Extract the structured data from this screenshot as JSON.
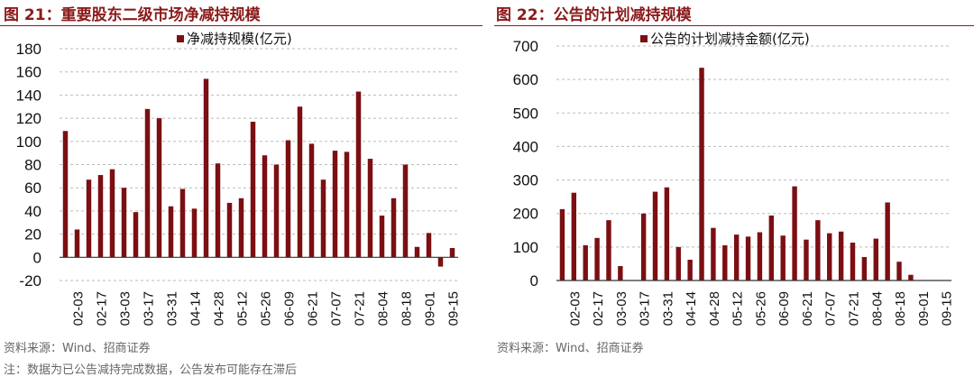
{
  "left": {
    "title": "图 21：重要股东二级市场净减持规模",
    "source": "资料来源：Wind、招商证券",
    "note": "注：数据为已公告减持完成数据，公告发布可能存在滞后"
  },
  "right": {
    "title": "图 22：公告的计划减持规模",
    "source": "资料来源：Wind、招商证券"
  },
  "colors": {
    "bar": "#7b0f12",
    "title": "#8b1a1a"
  },
  "chart_data": [
    {
      "type": "bar",
      "title": "",
      "legend": "净减持规模(亿元)",
      "legend_position": "top-center",
      "ylim": [
        -20,
        180
      ],
      "yticks": [
        -20,
        0,
        20,
        40,
        60,
        80,
        100,
        120,
        140,
        160,
        180
      ],
      "grid": true,
      "categories": [
        "",
        "02-03",
        "",
        "02-17",
        "",
        "03-03",
        "",
        "03-17",
        "",
        "03-31",
        "",
        "04-14",
        "",
        "04-28",
        "",
        "05-12",
        "",
        "05-26",
        "",
        "06-09",
        "",
        "06-21",
        "",
        "07-07",
        "",
        "07-21",
        "",
        "08-04",
        "",
        "08-18",
        "",
        "09-01",
        "",
        "09-15"
      ],
      "values": [
        109,
        24,
        67,
        71,
        76,
        60,
        39,
        128,
        120,
        44,
        59,
        42,
        154,
        81,
        47,
        51,
        117,
        88,
        80,
        101,
        130,
        98,
        67,
        92,
        91,
        143,
        85,
        36,
        51,
        80,
        9,
        21,
        -8,
        8
      ]
    },
    {
      "type": "bar",
      "title": "",
      "legend": "公告的计划减持金额(亿元)",
      "legend_position": "top-center",
      "ylim": [
        0,
        700
      ],
      "yticks": [
        0,
        100,
        200,
        300,
        400,
        500,
        600,
        700
      ],
      "grid": true,
      "categories": [
        "",
        "02-03",
        "",
        "02-17",
        "",
        "03-03",
        "",
        "03-17",
        "",
        "03-31",
        "",
        "04-14",
        "",
        "04-28",
        "",
        "05-12",
        "",
        "05-26",
        "",
        "06-09",
        "",
        "06-21",
        "",
        "07-07",
        "",
        "07-21",
        "",
        "08-04",
        "",
        "08-18",
        "",
        "09-01",
        "",
        "09-15"
      ],
      "values": [
        213,
        262,
        105,
        127,
        180,
        43,
        0,
        200,
        265,
        278,
        100,
        62,
        635,
        157,
        105,
        137,
        131,
        144,
        194,
        134,
        281,
        122,
        180,
        141,
        146,
        113,
        70,
        125,
        233,
        56,
        17,
        0,
        0,
        0
      ]
    }
  ]
}
